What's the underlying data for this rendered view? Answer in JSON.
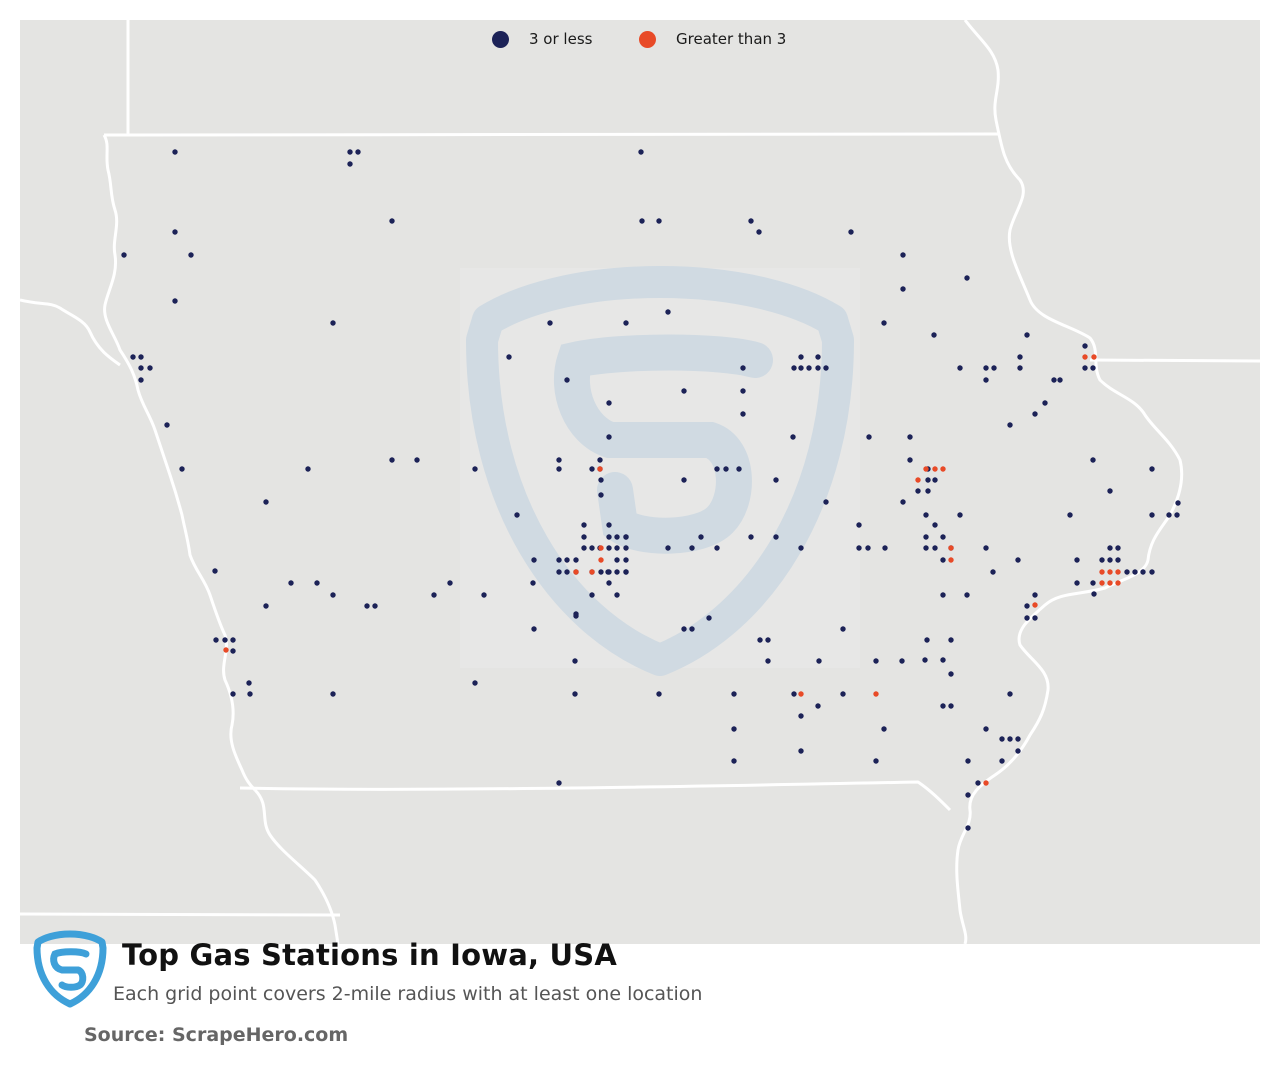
{
  "title": "Top Gas Stations in Iowa, USA",
  "subtitle": "Each grid point covers 2-mile radius with at least one location",
  "source": "Source: ScrapeHero.com",
  "legend": [
    {
      "label": "3 or less",
      "color": "#1c2257"
    },
    {
      "label": "Greater than 3",
      "color": "#e84a27"
    }
  ],
  "colors": {
    "land": "#e4e4e2",
    "border": "#ffffff",
    "low": "#1c2257",
    "high": "#e84a27",
    "watermark": "#c9d8e6",
    "logo": "#3ea0d9"
  },
  "icons": [
    "scrapehero-logo-icon",
    "scrapehero-watermark-icon"
  ]
}
